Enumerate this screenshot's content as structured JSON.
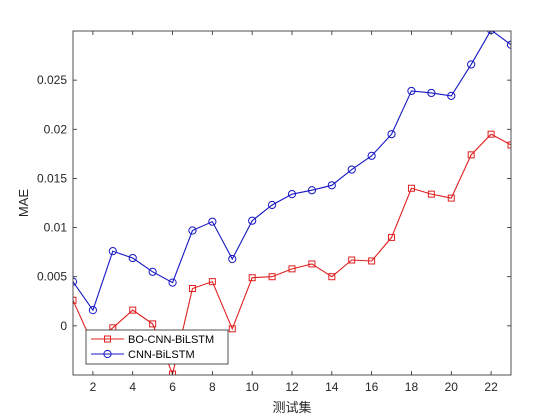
{
  "chart_data": {
    "type": "line",
    "title": "",
    "xlabel": "测试集",
    "ylabel": "MAE",
    "xlim": [
      1,
      23
    ],
    "ylim": [
      -0.005,
      0.03
    ],
    "x_ticks": [
      2,
      4,
      6,
      8,
      10,
      12,
      14,
      16,
      18,
      20,
      22
    ],
    "y_ticks": [
      0,
      0.005,
      0.01,
      0.015,
      0.02,
      0.025
    ],
    "y_tick_labels": [
      "0",
      "0.005",
      "0.01",
      "0.015",
      "0.02",
      "0.025"
    ],
    "grid": false,
    "legend_position": "bottom-left",
    "x": [
      1,
      2,
      3,
      4,
      5,
      6,
      7,
      8,
      9,
      10,
      11,
      12,
      13,
      14,
      15,
      16,
      17,
      18,
      19,
      20,
      21,
      22,
      23
    ],
    "series": [
      {
        "name": "BO-CNN-BiLSTM",
        "color": "#e01f1f",
        "marker": "square",
        "values": [
          0.0026,
          -0.0019,
          -0.0002,
          0.0016,
          0.0002,
          -0.0049,
          0.0038,
          0.0045,
          -0.0003,
          0.0049,
          0.005,
          0.0058,
          0.0063,
          0.005,
          0.0067,
          0.0066,
          0.009,
          0.014,
          0.0134,
          0.013,
          0.0174,
          0.0195,
          0.0184
        ]
      },
      {
        "name": "CNN-BiLSTM",
        "color": "#1616c4",
        "marker": "circle",
        "values": [
          0.0045,
          0.0016,
          0.0076,
          0.0069,
          0.0055,
          0.0044,
          0.0097,
          0.0106,
          0.0068,
          0.0107,
          0.0123,
          0.0134,
          0.0138,
          0.0143,
          0.0159,
          0.0173,
          0.0195,
          0.0239,
          0.0237,
          0.0234,
          0.0266,
          0.0301,
          0.0286
        ]
      }
    ]
  }
}
